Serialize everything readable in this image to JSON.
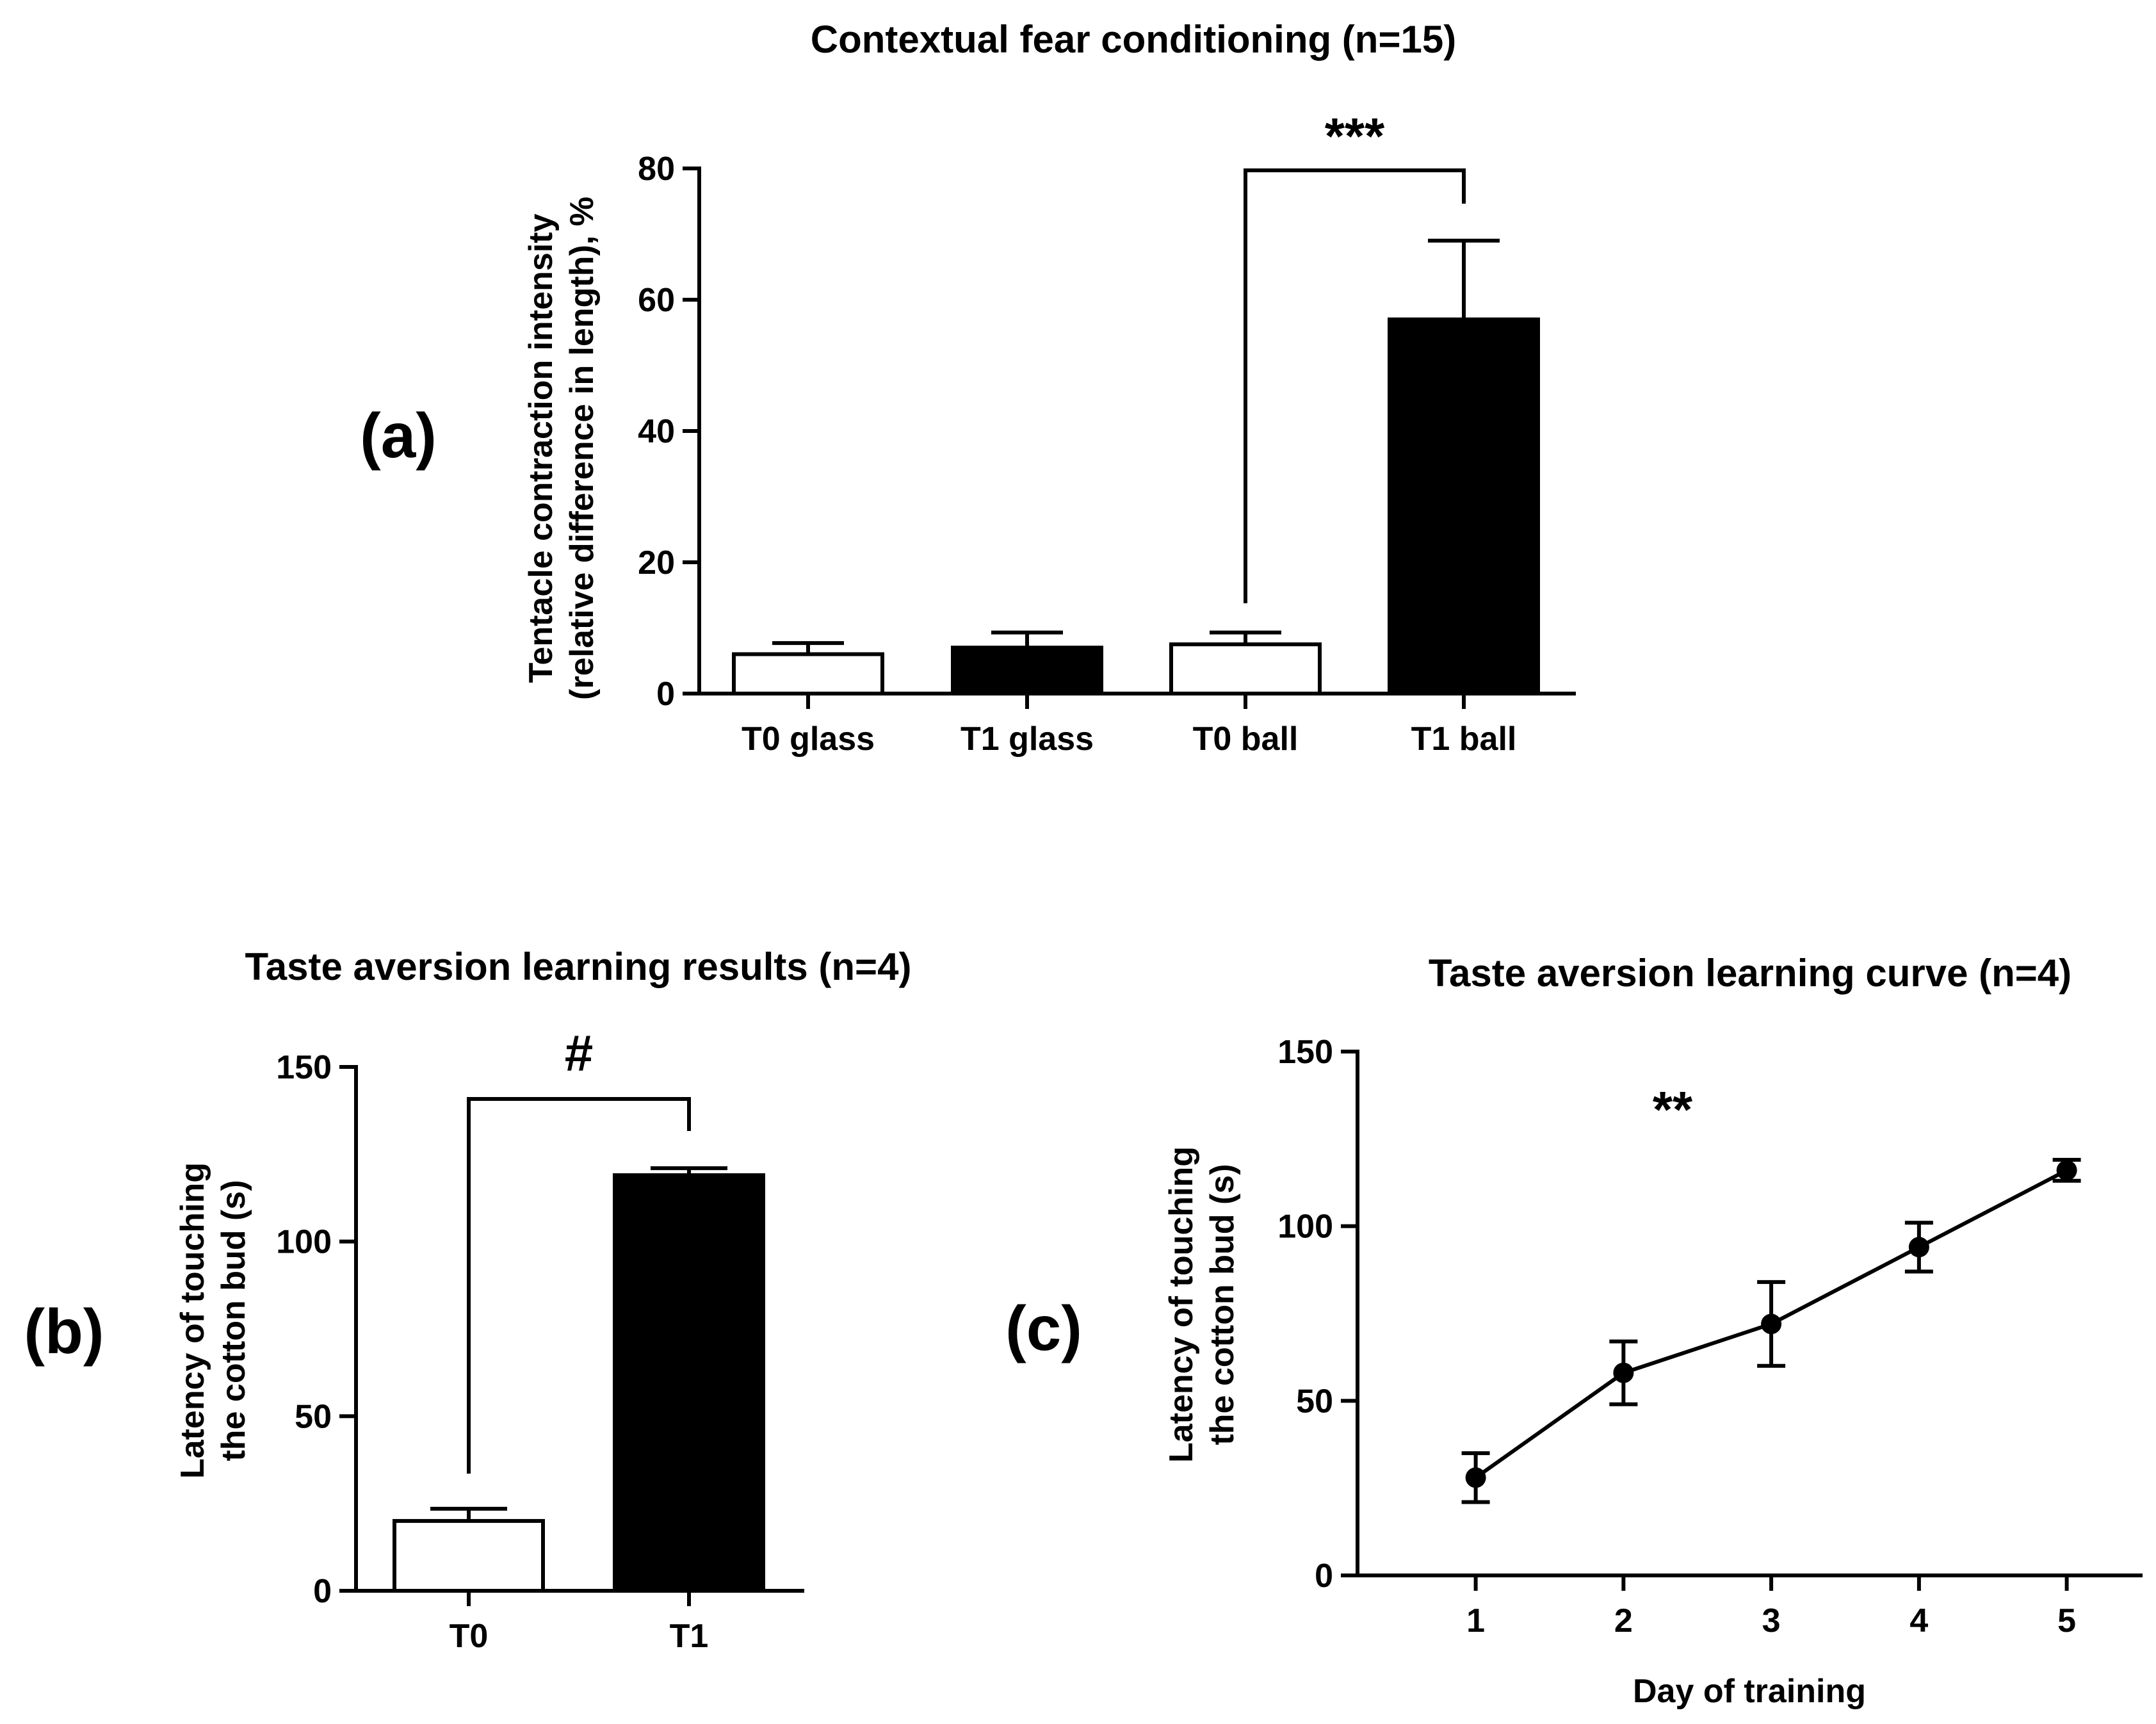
{
  "chart_data": [
    {
      "type": "bar",
      "panel": "(a)",
      "title": "Contextual fear conditioning (n=15)",
      "ylabel": [
        "Tentacle contraction intensity",
        "(relative difference in length), %"
      ],
      "xlabel": "",
      "categories": [
        "T0 glass",
        "T1 glass",
        "T0 ball",
        "T1 ball"
      ],
      "values": [
        6,
        7,
        7.5,
        57
      ],
      "errors": [
        1.7,
        2.3,
        1.8,
        12
      ],
      "fills": [
        "white",
        "black",
        "white",
        "black"
      ],
      "ylim": [
        0,
        80
      ],
      "yticks": [
        0,
        20,
        40,
        60,
        80
      ],
      "significance": {
        "from": "T0 ball",
        "to": "T1 ball",
        "label": "***"
      }
    },
    {
      "type": "bar",
      "panel": "(b)",
      "title": "Taste aversion learning results (n=4)",
      "ylabel": [
        "Latency of touching",
        "the cotton bud (s)"
      ],
      "xlabel": "",
      "categories": [
        "T0",
        "T1"
      ],
      "values": [
        20,
        119
      ],
      "errors": [
        3.5,
        2
      ],
      "fills": [
        "white",
        "black"
      ],
      "ylim": [
        0,
        150
      ],
      "yticks": [
        0,
        50,
        100,
        150
      ],
      "significance": {
        "from": "T0",
        "to": "T1",
        "label": "#"
      }
    },
    {
      "type": "line",
      "panel": "(c)",
      "title": "Taste aversion learning curve (n=4)",
      "ylabel": [
        "Latency of touching",
        "the cotton bud (s)"
      ],
      "xlabel": "Day of training",
      "x": [
        1,
        2,
        3,
        4,
        5
      ],
      "y": [
        28,
        58,
        72,
        94,
        116
      ],
      "errors": [
        7,
        9,
        12,
        7,
        3
      ],
      "xlim": [
        0.2,
        5.5
      ],
      "xticks": [
        1,
        2,
        3,
        4,
        5
      ],
      "ylim": [
        0,
        150
      ],
      "yticks": [
        0,
        50,
        100,
        150
      ],
      "significance": {
        "label": "**"
      }
    }
  ]
}
